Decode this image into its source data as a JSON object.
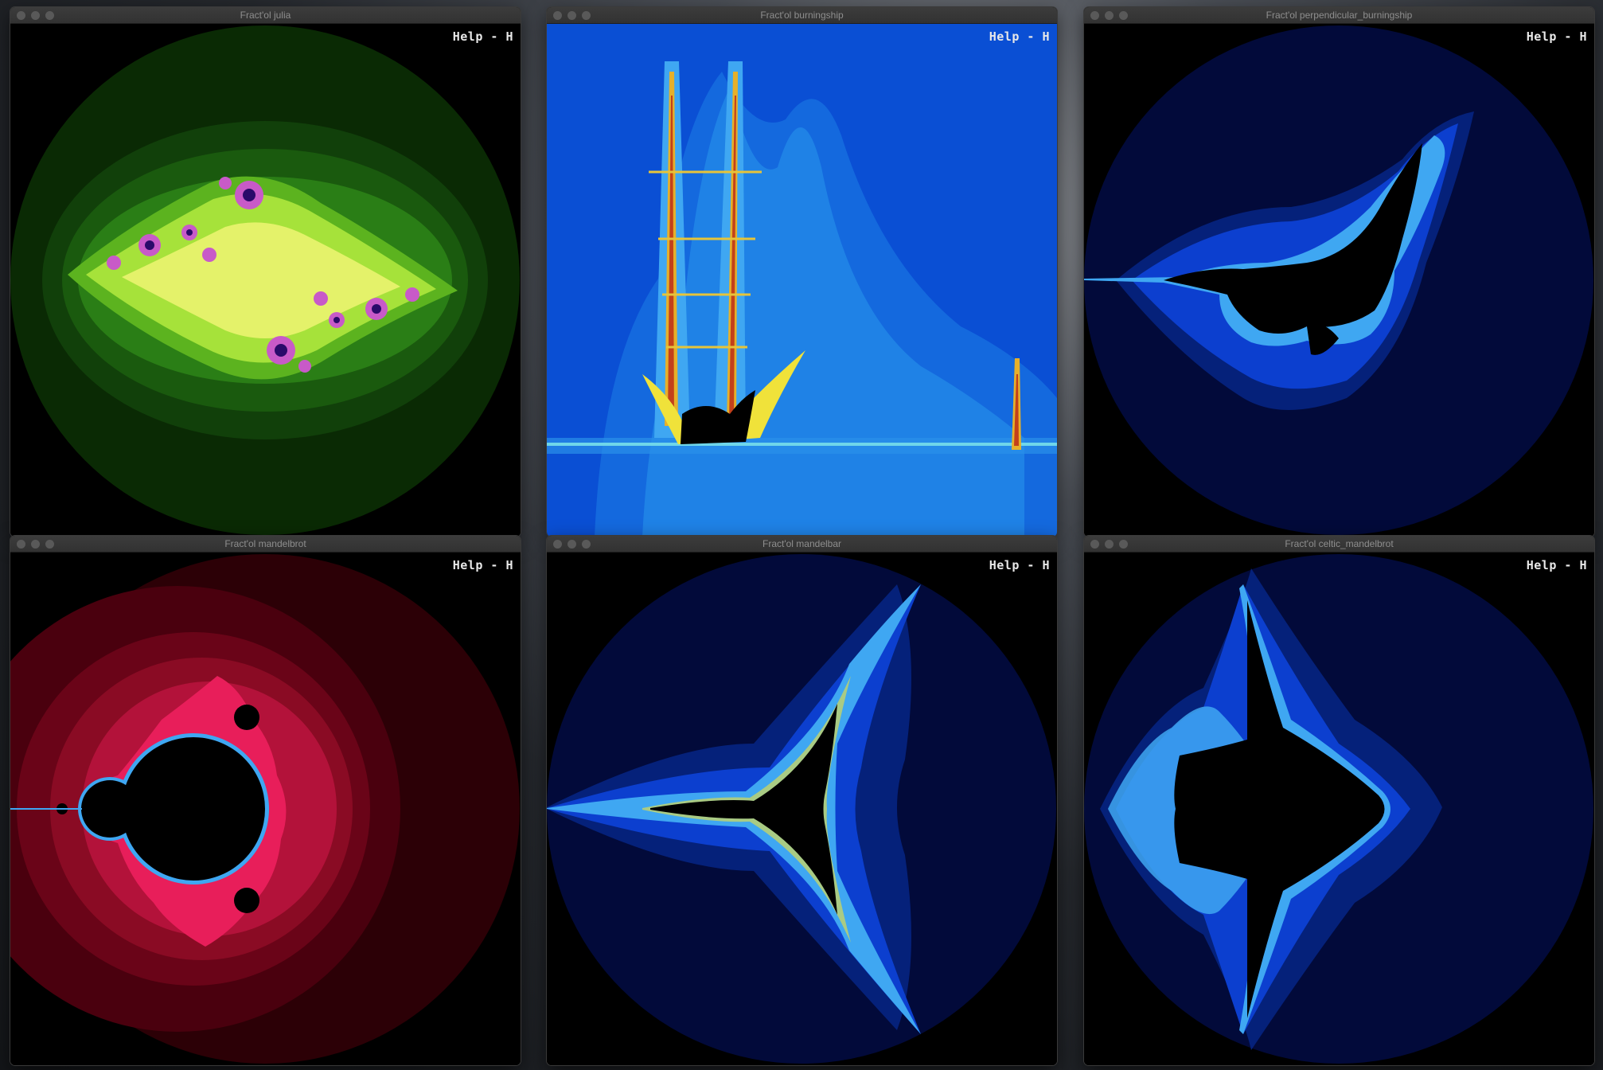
{
  "help_label": "Help - H",
  "windows": [
    {
      "title": "Fract'ol julia",
      "fractal": "julia",
      "palette": "green"
    },
    {
      "title": "Fract'ol burningship",
      "fractal": "burningship",
      "palette": "blue"
    },
    {
      "title": "Fract'ol perpendicular_burningship",
      "fractal": "perpendicular_burningship",
      "palette": "blue"
    },
    {
      "title": "Fract'ol mandelbrot",
      "fractal": "mandelbrot",
      "palette": "red"
    },
    {
      "title": "Fract'ol mandelbar",
      "fractal": "mandelbar",
      "palette": "blue"
    },
    {
      "title": "Fract'ol celtic_mandelbrot",
      "fractal": "celtic_mandelbrot",
      "palette": "blue"
    }
  ],
  "colors": {
    "green_dark": "#0a2a04",
    "green_mid": "#1f6e12",
    "green_light": "#aee83c",
    "julia_spots": "#d86ad8",
    "blue_dark": "#020a3a",
    "blue_mid": "#0c3fcf",
    "blue_light": "#3fa7f2",
    "edge_yellow": "#f0e23a",
    "red_dark": "#2c0006",
    "red_mid": "#8a0b24",
    "red_light": "#f0206a"
  }
}
